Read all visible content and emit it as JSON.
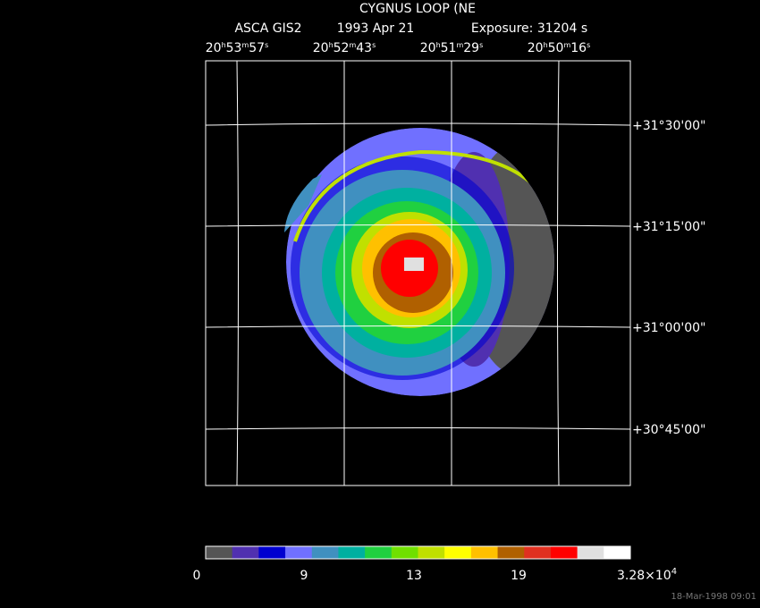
{
  "title": "CYGNUS LOOP (NE",
  "subtitle": [
    "ASCA GIS2",
    "1993 Apr 21",
    "Exposure: 31204 s"
  ],
  "ra_labels": [
    [
      "20",
      "h",
      "53",
      "m",
      "57",
      "s"
    ],
    [
      "20",
      "h",
      "52",
      "m",
      "43",
      "s"
    ],
    [
      "20",
      "h",
      "51",
      "m",
      "29",
      "s"
    ],
    [
      "20",
      "h",
      "50",
      "m",
      "16",
      "s"
    ]
  ],
  "dec_labels": [
    "+31°30'00\"",
    "+31°15'00\"",
    "+31°00'00\"",
    "+30°45'00\""
  ],
  "colorbar": {
    "colors": [
      "#555555",
      "#5030b0",
      "#0000d0",
      "#7070ff",
      "#4090c0",
      "#00b0a0",
      "#20d040",
      "#70e000",
      "#c0e000",
      "#ffff00",
      "#ffc000",
      "#b06000",
      "#e03020",
      "#ff0000",
      "#e0e0e0",
      "#ffffff"
    ],
    "labels": [
      "0",
      "9",
      "13",
      "19",
      [
        "3.28×10",
        "4"
      ]
    ]
  },
  "footer": "18-Mar-1998 09:01"
}
